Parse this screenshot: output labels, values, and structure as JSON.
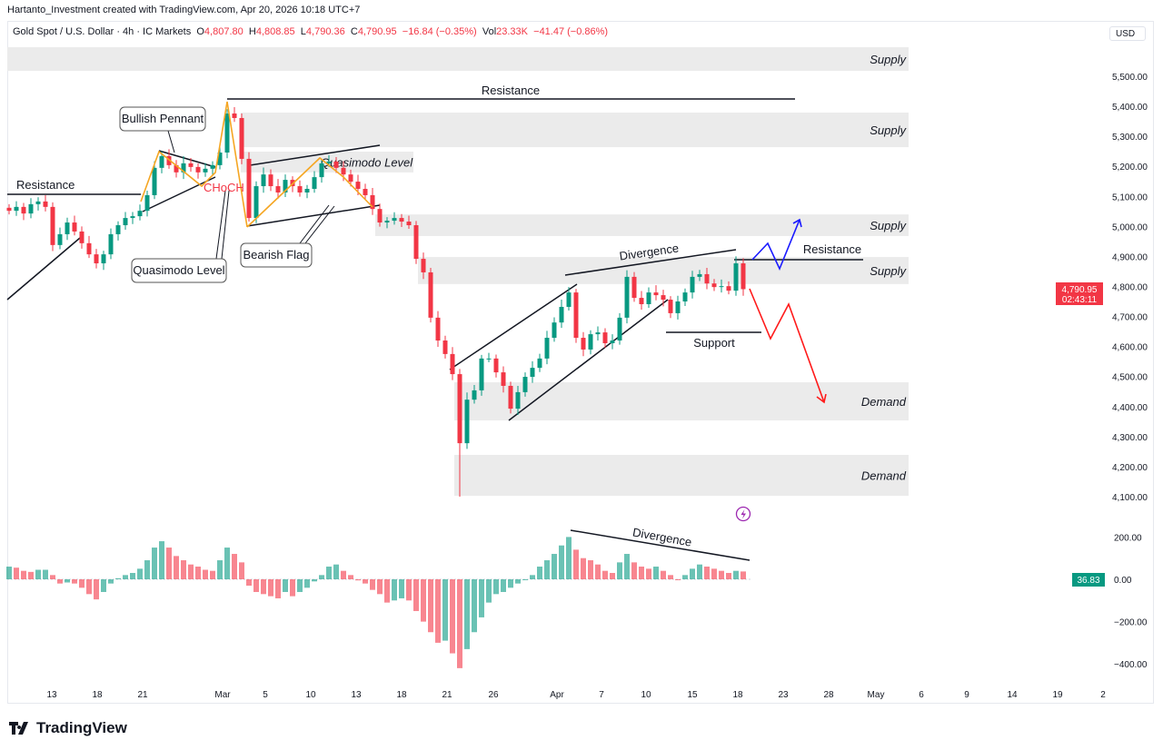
{
  "credit": "Hartanto_Investment created with TradingView.com, Apr 20, 2026 10:18 UTC+7",
  "legend": {
    "symbol": "Gold Spot / U.S. Dollar · 4h · IC Markets",
    "o_label": "O",
    "o": "4,807.80",
    "h_label": "H",
    "h": "4,808.85",
    "l_label": "L",
    "l": "4,790.36",
    "c_label": "C",
    "c": "4,790.95",
    "change": "−16.84 (−0.35%)",
    "vol_label": "Vol",
    "vol": "23.33K",
    "vol_change": "−41.47 (−0.86%)"
  },
  "currency": "USD",
  "brand": "TradingView",
  "colors": {
    "up": "#089981",
    "down": "#f23645",
    "zone": "#ebebeb",
    "pattern": "#f5a623",
    "bull_path": "#1a1aff",
    "bear_path": "#ff1a1a",
    "alert": "#9c27b0"
  },
  "chart_data": [
    {
      "type": "candlestick",
      "title": "Gold Spot / U.S. Dollar · 4h · IC Markets",
      "ylim": [
        4060,
        5640
      ],
      "y_ticks": [
        "5,500.00",
        "5,400.00",
        "5,300.00",
        "5,200.00",
        "5,100.00",
        "5,000.00",
        "4,900.00",
        "4,800.00",
        "4,700.00",
        "4,600.00",
        "4,500.00",
        "4,400.00",
        "4,300.00",
        "4,200.00",
        "4,100.00"
      ],
      "x_ticks": [
        "13",
        "18",
        "21",
        "Mar",
        "5",
        "10",
        "13",
        "18",
        "21",
        "26",
        "Apr",
        "7",
        "10",
        "15",
        "18",
        "23",
        "28",
        "May",
        "6",
        "9",
        "14",
        "19",
        "2"
      ],
      "closes": [
        5052,
        5065,
        5043,
        5074,
        5083,
        5065,
        4938,
        4974,
        5013,
        4983,
        4944,
        4907,
        4877,
        4907,
        4974,
        5004,
        5028,
        5034,
        5052,
        5104,
        5195,
        5234,
        5204,
        5180,
        5210,
        5198,
        5180,
        5192,
        5204,
        5246,
        5376,
        5361,
        5225,
        5028,
        5134,
        5173,
        5134,
        5113,
        5155,
        5134,
        5113,
        5125,
        5164,
        5210,
        5216,
        5195,
        5173,
        5149,
        5125,
        5104,
        5058,
        5013,
        5019,
        5028,
        5016,
        5004,
        4892,
        4847,
        4696,
        4620,
        4575,
        4508,
        4278,
        4423,
        4454,
        4560,
        4560,
        4514,
        4469,
        4393,
        4448,
        4499,
        4529,
        4560,
        4629,
        4680,
        4732,
        4780,
        4629,
        4590,
        4641,
        4647,
        4611,
        4620,
        4696,
        4832,
        4762,
        4741,
        4780,
        4771,
        4756,
        4711,
        4750,
        4780,
        4832,
        4841,
        4810,
        4798,
        4801,
        4786,
        4877,
        4791
      ],
      "last_price": "4,790.95",
      "countdown": "02:43:11",
      "zones": [
        {
          "label": "Supply",
          "from": 5518,
          "to": 5597
        },
        {
          "label": "Supply",
          "from": 5264,
          "to": 5379
        },
        {
          "label": "Quasimodo Level",
          "from": 5180,
          "to": 5249
        },
        {
          "label": "Supply",
          "from": 4968,
          "to": 5040
        },
        {
          "label": "Supply",
          "from": 4808,
          "to": 4898
        },
        {
          "label": "Demand",
          "from": 4354,
          "to": 4481
        },
        {
          "label": "Demand",
          "from": 4103,
          "to": 4239
        }
      ],
      "annotations": {
        "resistance_left": "Resistance",
        "bullish_pennant": "Bullish Pennant",
        "choch": "CHoCH",
        "quasimodo_left": "Quasimodo Level",
        "bearish_flag": "Bearish Flag",
        "resistance_top": "Resistance",
        "divergence": "Divergence",
        "resistance_right": "Resistance",
        "support": "Support"
      }
    },
    {
      "type": "histogram",
      "ylim": [
        -460,
        260
      ],
      "y_ticks": [
        "200.00",
        "0.00",
        "−200.00",
        "−400.00"
      ],
      "values": [
        60,
        55,
        40,
        35,
        45,
        45,
        20,
        -20,
        -15,
        -20,
        -40,
        -70,
        -95,
        -60,
        -20,
        5,
        20,
        30,
        50,
        90,
        150,
        180,
        150,
        110,
        90,
        70,
        60,
        45,
        40,
        90,
        150,
        120,
        80,
        -30,
        -60,
        -70,
        -80,
        -90,
        -60,
        -80,
        -60,
        -40,
        -10,
        20,
        60,
        70,
        40,
        20,
        -5,
        -20,
        -50,
        -70,
        -110,
        -100,
        -90,
        -100,
        -150,
        -200,
        -250,
        -300,
        -290,
        -350,
        -420,
        -330,
        -250,
        -180,
        -110,
        -70,
        -60,
        -40,
        -20,
        0,
        20,
        60,
        90,
        120,
        160,
        200,
        140,
        100,
        90,
        70,
        40,
        30,
        80,
        120,
        80,
        60,
        50,
        60,
        40,
        20,
        0,
        20,
        50,
        70,
        60,
        50,
        40,
        30,
        40,
        37
      ],
      "last_value": "36.83",
      "annotation": "Divergence"
    }
  ]
}
